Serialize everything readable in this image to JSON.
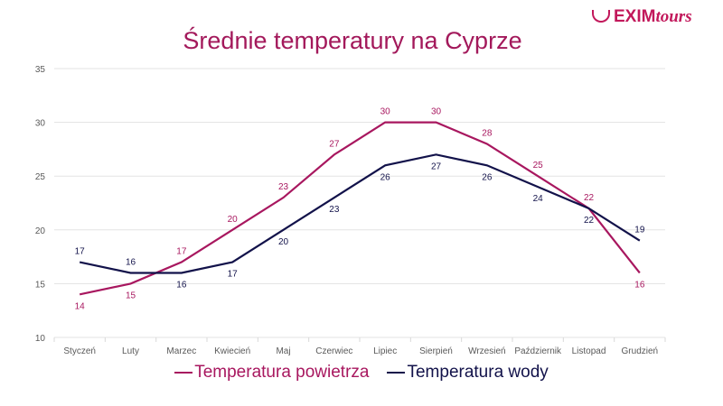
{
  "logo": {
    "brand": "EXIM",
    "suffix": "tours"
  },
  "chart_data": {
    "type": "line",
    "title": "Średnie temperatury na Cyprze",
    "categories": [
      "Styczeń",
      "Luty",
      "Marzec",
      "Kwiecień",
      "Maj",
      "Czerwiec",
      "Lipiec",
      "Sierpień",
      "Wrzesień",
      "Październik",
      "Listopad",
      "Grudzień"
    ],
    "series": [
      {
        "name": "Temperatura powietrza",
        "color": "#a8175f",
        "values": [
          14,
          15,
          17,
          20,
          23,
          27,
          30,
          30,
          28,
          25,
          22,
          16
        ]
      },
      {
        "name": "Temperatura wody",
        "color": "#12124a",
        "values": [
          17,
          16,
          16,
          17,
          20,
          23,
          26,
          27,
          26,
          24,
          22,
          19
        ]
      }
    ],
    "ylim": [
      10,
      35
    ],
    "yticks": [
      10,
      15,
      20,
      25,
      30,
      35
    ],
    "grid": true,
    "legend": "bottom",
    "data_labels": true
  }
}
